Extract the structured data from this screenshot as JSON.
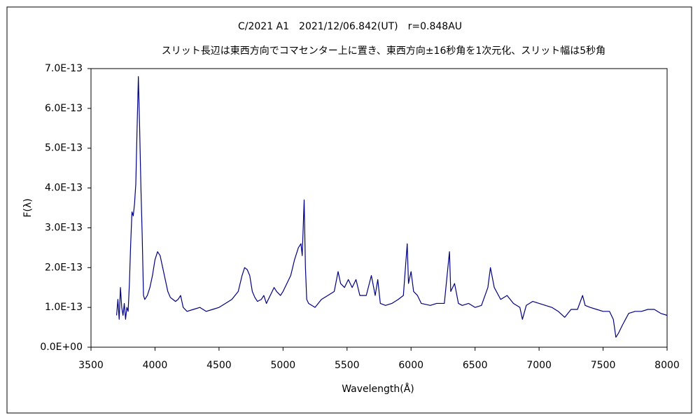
{
  "chart_data": {
    "type": "line",
    "title": "C/2021 A1　2021/12/06.842(UT)　r=0.848AU",
    "subtitle": "スリット長辺は東西方向でコマセンター上に置き、東西方向±16秒角を1次元化、スリット幅は5秒角",
    "xlabel": "Wavelength(Å)",
    "ylabel": "F(λ)",
    "xlim": [
      3500,
      8000
    ],
    "xticks": [
      3500,
      4000,
      4500,
      5000,
      5500,
      6000,
      6500,
      7000,
      7500,
      8000
    ],
    "ylim": [
      0,
      7e-13
    ],
    "yticks": [
      {
        "value": 0,
        "label": "0.0E+00"
      },
      {
        "value": 1e-13,
        "label": "1.0E-13"
      },
      {
        "value": 2e-13,
        "label": "2.0E-13"
      },
      {
        "value": 3e-13,
        "label": "3.0E-13"
      },
      {
        "value": 4e-13,
        "label": "4.0E-13"
      },
      {
        "value": 5e-13,
        "label": "5.0E-13"
      },
      {
        "value": 6e-13,
        "label": "6.0E-13"
      },
      {
        "value": 7e-13,
        "label": "7.0E-13"
      }
    ],
    "grid": false,
    "series": [
      {
        "color": "#000080",
        "x": [
          3700,
          3710,
          3720,
          3730,
          3740,
          3750,
          3760,
          3770,
          3780,
          3790,
          3800,
          3810,
          3820,
          3830,
          3840,
          3850,
          3860,
          3870,
          3880,
          3890,
          3900,
          3910,
          3920,
          3940,
          3960,
          3980,
          4000,
          4020,
          4040,
          4060,
          4080,
          4100,
          4120,
          4140,
          4160,
          4180,
          4200,
          4220,
          4250,
          4300,
          4350,
          4400,
          4450,
          4500,
          4550,
          4600,
          4650,
          4680,
          4700,
          4720,
          4740,
          4760,
          4780,
          4800,
          4830,
          4850,
          4870,
          4900,
          4930,
          4950,
          4980,
          5000,
          5030,
          5060,
          5090,
          5120,
          5140,
          5150,
          5165,
          5175,
          5185,
          5200,
          5250,
          5300,
          5350,
          5400,
          5430,
          5450,
          5480,
          5510,
          5540,
          5570,
          5600,
          5650,
          5690,
          5720,
          5740,
          5760,
          5800,
          5850,
          5900,
          5940,
          5970,
          5980,
          6000,
          6020,
          6050,
          6080,
          6150,
          6200,
          6260,
          6300,
          6310,
          6340,
          6370,
          6400,
          6450,
          6500,
          6550,
          6600,
          6620,
          6650,
          6700,
          6750,
          6800,
          6850,
          6870,
          6900,
          6950,
          7000,
          7050,
          7100,
          7150,
          7200,
          7250,
          7300,
          7340,
          7360,
          7400,
          7450,
          7500,
          7550,
          7580,
          7600,
          7620,
          7650,
          7700,
          7750,
          7800,
          7850,
          7900,
          7950,
          8000
        ],
        "values": [
          8e-14,
          1.2e-13,
          7e-14,
          1.5e-13,
          1e-13,
          8e-14,
          1.1e-13,
          7e-14,
          1e-13,
          9e-14,
          1.6e-13,
          2.6e-13,
          3.4e-13,
          3.3e-13,
          3.6e-13,
          4.1e-13,
          5.5e-13,
          6.8e-13,
          5.5e-13,
          4e-13,
          2.8e-13,
          1.3e-13,
          1.2e-13,
          1.3e-13,
          1.5e-13,
          1.8e-13,
          2.2e-13,
          2.4e-13,
          2.3e-13,
          2e-13,
          1.7e-13,
          1.4e-13,
          1.25e-13,
          1.2e-13,
          1.15e-13,
          1.2e-13,
          1.3e-13,
          1e-13,
          9e-14,
          9.5e-14,
          1e-13,
          9e-14,
          9.5e-14,
          1e-13,
          1.1e-13,
          1.2e-13,
          1.4e-13,
          1.8e-13,
          2e-13,
          1.95e-13,
          1.8e-13,
          1.4e-13,
          1.25e-13,
          1.15e-13,
          1.2e-13,
          1.3e-13,
          1.1e-13,
          1.3e-13,
          1.5e-13,
          1.4e-13,
          1.3e-13,
          1.4e-13,
          1.6e-13,
          1.8e-13,
          2.2e-13,
          2.5e-13,
          2.6e-13,
          2.3e-13,
          3.7e-13,
          2e-13,
          1.2e-13,
          1.1e-13,
          1e-13,
          1.2e-13,
          1.3e-13,
          1.4e-13,
          1.9e-13,
          1.6e-13,
          1.5e-13,
          1.7e-13,
          1.5e-13,
          1.7e-13,
          1.3e-13,
          1.3e-13,
          1.8e-13,
          1.3e-13,
          1.7e-13,
          1.1e-13,
          1.05e-13,
          1.1e-13,
          1.2e-13,
          1.3e-13,
          2.6e-13,
          1.6e-13,
          1.9e-13,
          1.4e-13,
          1.3e-13,
          1.1e-13,
          1.05e-13,
          1.1e-13,
          1.1e-13,
          2.4e-13,
          1.4e-13,
          1.6e-13,
          1.1e-13,
          1.05e-13,
          1.1e-13,
          1e-13,
          1.05e-13,
          1.5e-13,
          2e-13,
          1.5e-13,
          1.2e-13,
          1.3e-13,
          1.1e-13,
          1e-13,
          7e-14,
          1.05e-13,
          1.15e-13,
          1.1e-13,
          1.05e-13,
          1e-13,
          9e-14,
          7.5e-14,
          9.5e-14,
          9.5e-14,
          1.3e-13,
          1.05e-13,
          1e-13,
          9.5e-14,
          9e-14,
          9e-14,
          7e-14,
          2.5e-14,
          3.5e-14,
          5.5e-14,
          8.5e-14,
          9e-14,
          9e-14,
          9.5e-14,
          9.5e-14,
          8.5e-14,
          8e-14
        ]
      }
    ]
  }
}
